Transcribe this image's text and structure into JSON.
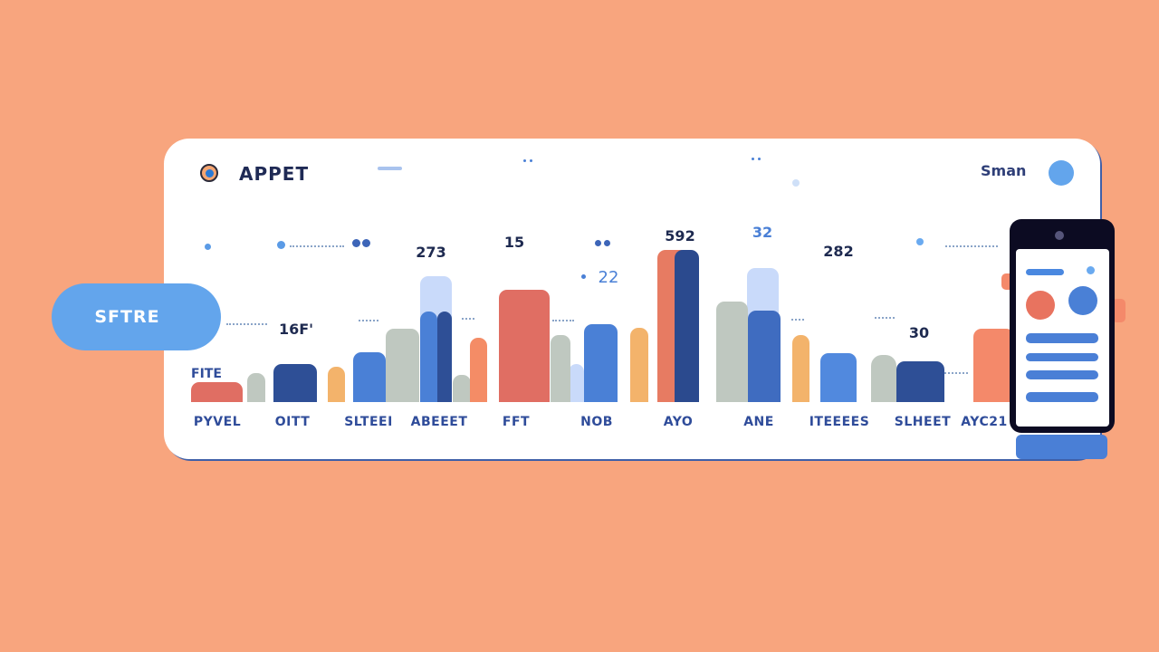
{
  "header": {
    "app_title": "APPET",
    "user_label": "Sman"
  },
  "side_button": {
    "label": "SFTRE"
  },
  "chart": {
    "left_label": "FITE",
    "value_labels": [
      "16F'",
      "273",
      "15",
      "22",
      "592",
      "32",
      "282",
      "30"
    ],
    "categories": [
      "PYVEL",
      "OITT",
      "SLTEEI",
      "ABEEET",
      "FFT",
      "NOB",
      "AYO",
      "ANE",
      "ITEEEES",
      "SLHEET",
      "AYC21"
    ]
  },
  "colors": {
    "background": "#f8a57e",
    "card": "#ffffff",
    "accent_blue": "#4a80d6",
    "navy": "#2e4f96",
    "red": "#e06e63",
    "orange": "#f3b36b",
    "gray": "#bfc8c0",
    "light_blue": "#c9dafa",
    "phone": "#0c0b22"
  },
  "chart_data": {
    "type": "bar",
    "categories": [
      "PYVEL",
      "OITT",
      "SLTEEI",
      "ABEEET",
      "FFT",
      "NOB",
      "AYO",
      "ANE",
      "ITEEEES",
      "SLHEET",
      "AYC21"
    ],
    "value_labels": [
      "16F'",
      "273",
      "15",
      "22",
      "592",
      "32",
      "282",
      "30"
    ],
    "bar_levels_percent": [
      13,
      19,
      25,
      23,
      33,
      48,
      83,
      18,
      42,
      74,
      53,
      25,
      51,
      100,
      49,
      66,
      88,
      44,
      32,
      27,
      48
    ]
  }
}
